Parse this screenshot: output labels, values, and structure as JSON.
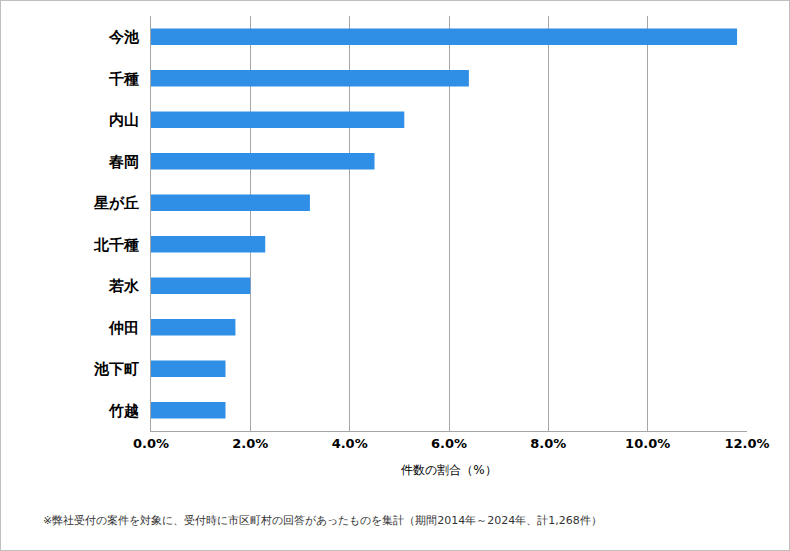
{
  "chart_data": {
    "type": "bar",
    "orientation": "horizontal",
    "categories": [
      "今池",
      "千種",
      "内山",
      "春岡",
      "星が丘",
      "北千種",
      "若水",
      "仲田",
      "池下町",
      "竹越"
    ],
    "values": [
      11.8,
      6.4,
      5.1,
      4.5,
      3.2,
      2.3,
      2.0,
      1.7,
      1.5,
      1.5
    ],
    "color": "#2f8fe6",
    "x_label": "件数の割合（%）",
    "xlim": [
      0,
      12
    ],
    "xticks": [
      {
        "value": 0,
        "label": "0.0%"
      },
      {
        "value": 2,
        "label": "2.0%"
      },
      {
        "value": 4,
        "label": "4.0%"
      },
      {
        "value": 6,
        "label": "6.0%"
      },
      {
        "value": 8,
        "label": "8.0%"
      },
      {
        "value": 10,
        "label": "10.0%"
      },
      {
        "value": 12,
        "label": "12.0%"
      }
    ],
    "grid": true,
    "annotations": [
      "※弊社受付の案件を対象に、受付時に市区町村の回答があったものを集計（期間2014年～2024年、計1,268件）"
    ]
  }
}
